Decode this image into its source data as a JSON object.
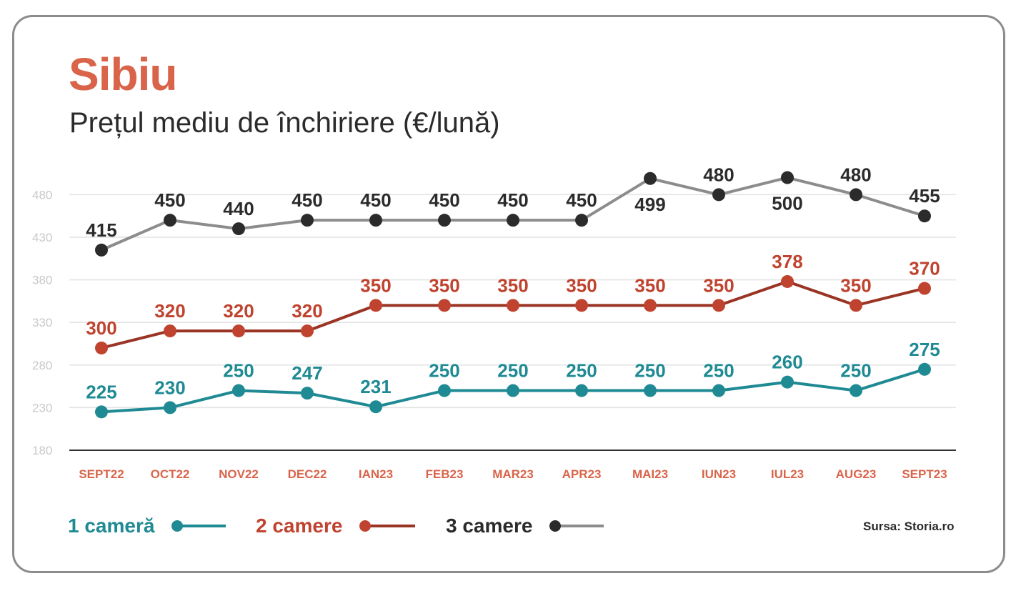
{
  "title": "Sibiu",
  "subtitle": "Prețul mediu de închiriere (€/lună)",
  "source": "Sursa: Storia.ro",
  "colors": {
    "title": "#d9644a",
    "axis_tick": "#c9c9c9",
    "category": "#d9644a",
    "grid": "#e2e2e2",
    "baseline": "#333333"
  },
  "legend": [
    {
      "label": "1 cameră",
      "text_color": "#1f8a93",
      "dot_color": "#1f8a93",
      "line_color": "#1f8a93"
    },
    {
      "label": "2 camere",
      "text_color": "#c0432f",
      "dot_color": "#c0432f",
      "line_color": "#9a3424"
    },
    {
      "label": "3 camere",
      "text_color": "#2b2b2b",
      "dot_color": "#2b2b2b",
      "line_color": "#8c8c8e"
    }
  ],
  "chart_data": {
    "type": "line",
    "title": "Sibiu",
    "subtitle": "Prețul mediu de închiriere (€/lună)",
    "categories": [
      "SEPT22",
      "OCT22",
      "NOV22",
      "DEC22",
      "IAN23",
      "FEB23",
      "MAR23",
      "APR23",
      "MAI23",
      "IUN23",
      "IUL23",
      "AUG23",
      "SEPT23"
    ],
    "yticks": [
      180,
      230,
      280,
      330,
      380,
      430,
      480
    ],
    "ylim": [
      180,
      480
    ],
    "grid": true,
    "legend_position": "bottom-left",
    "series": [
      {
        "name": "1 cameră",
        "values": [
          225,
          230,
          250,
          247,
          231,
          250,
          250,
          250,
          250,
          250,
          260,
          250,
          275
        ],
        "label_side": [
          "above",
          "above",
          "above",
          "above",
          "above",
          "above",
          "above",
          "above",
          "above",
          "above",
          "above",
          "above",
          "above"
        ]
      },
      {
        "name": "2 camere",
        "values": [
          300,
          320,
          320,
          320,
          350,
          350,
          350,
          350,
          350,
          350,
          378,
          350,
          370
        ],
        "label_side": [
          "above",
          "above",
          "above",
          "above",
          "above",
          "above",
          "above",
          "above",
          "above",
          "above",
          "above",
          "above",
          "above"
        ]
      },
      {
        "name": "3 camere",
        "values": [
          415,
          450,
          440,
          450,
          450,
          450,
          450,
          450,
          499,
          480,
          500,
          480,
          455
        ],
        "label_side": [
          "above",
          "above",
          "above",
          "above",
          "above",
          "above",
          "above",
          "above",
          "below",
          "above",
          "below",
          "above",
          "above"
        ]
      }
    ]
  }
}
